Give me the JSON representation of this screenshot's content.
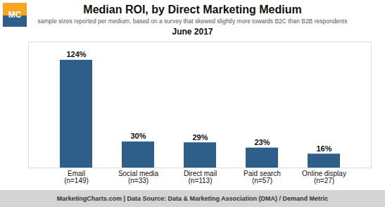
{
  "chart_data": {
    "type": "bar",
    "title": "Median ROI, by Direct Marketing Medium",
    "subtitle": "sample sizes reported per medium, based on a survey that skewed slightly more towards B2C than B2B respondents",
    "annotations": [
      "June 2017",
      "MarketingCharts.com | Data Source: Data & Marketing Association (DMA) / Demand Metric",
      "MC"
    ],
    "categories": [
      "Email\n(n=149)",
      "Social media\n(n=33)",
      "Direct mail\n(n=113)",
      "Paid search\n(n=57)",
      "Online display\n(n=27)"
    ],
    "values": [
      124,
      30,
      29,
      23,
      16
    ],
    "value_labels": [
      "124%",
      "30%",
      "29%",
      "23%",
      "16%"
    ],
    "data_labels": true,
    "color": "#2e5f8a",
    "ylim": [
      0,
      145
    ],
    "tick_labels": "x",
    "grid": false
  }
}
